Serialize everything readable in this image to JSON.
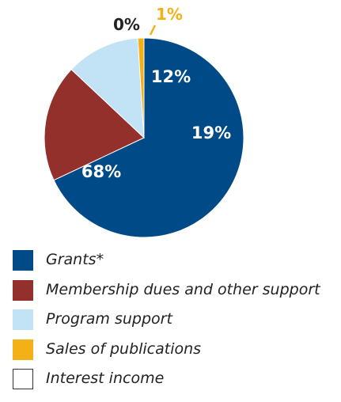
{
  "chart_data": {
    "type": "pie",
    "slices": [
      {
        "name": "Grants*",
        "value": 68,
        "label": "68%",
        "color": "#004A87"
      },
      {
        "name": "Membership dues and other support",
        "value": 19,
        "label": "19%",
        "color": "#93302C"
      },
      {
        "name": "Program support",
        "value": 12,
        "label": "12%",
        "color": "#C2E2F5"
      },
      {
        "name": "Sales of publications",
        "value": 1,
        "label": "1%",
        "color": "#F3B017"
      },
      {
        "name": "Interest income",
        "value": 0,
        "label": "0%",
        "color": "#FFFFFF"
      }
    ]
  },
  "legend": {
    "items": [
      {
        "label": "Grants*",
        "color": "#004A87"
      },
      {
        "label": "Membership dues and other support",
        "color": "#93302C"
      },
      {
        "label": "Program support",
        "color": "#C2E2F5"
      },
      {
        "label": "Sales of publications",
        "color": "#F3B017"
      },
      {
        "label": "Interest income",
        "color": "#FFFFFF",
        "border": "#333333"
      }
    ]
  }
}
